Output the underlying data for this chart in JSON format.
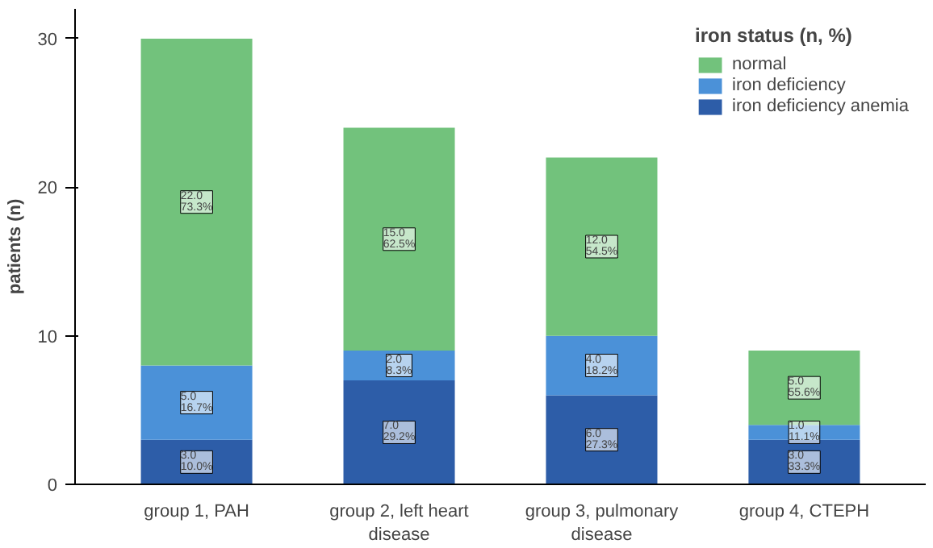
{
  "chart_data": {
    "type": "bar",
    "stacked": true,
    "ylabel": "patients (n)",
    "legend_title": "iron status (n, %)",
    "legend": "top right",
    "categories": [
      "group 1, PAH",
      "group 2, left heart disease",
      "group 3, pulmonary disease",
      "group 4, CTEPH"
    ],
    "series": [
      {
        "name": "iron deficiency anemia",
        "color": "#2d5da8",
        "values": [
          3.0,
          7.0,
          6.0,
          3.0
        ],
        "value_labels": [
          "3.0\n10.0%",
          "7.0\n29.2%",
          "6.0\n27.3%",
          "3.0\n33.3%"
        ]
      },
      {
        "name": "iron deficiency",
        "color": "#4b91d8",
        "values": [
          5.0,
          2.0,
          4.0,
          1.0
        ],
        "value_labels": [
          "5.0\n16.7%",
          "2.0\n8.3%",
          "4.0\n18.2%",
          "1.0\n11.1%"
        ]
      },
      {
        "name": "normal",
        "color": "#72c27c",
        "values": [
          22.0,
          15.0,
          12.0,
          5.0
        ],
        "value_labels": [
          "22.0\n73.3%",
          "15.0\n62.5%",
          "12.0\n54.5%",
          "5.0\n55.6%"
        ]
      }
    ],
    "ylim": [
      0,
      32
    ],
    "yticks": [
      0,
      10,
      20,
      30
    ],
    "grid": false
  }
}
